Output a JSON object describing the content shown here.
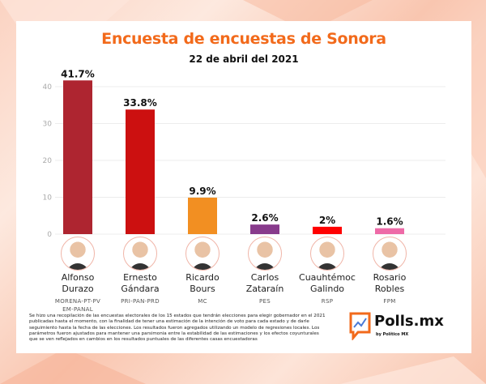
{
  "header": {
    "title": "Encuesta de encuestas de Sonora",
    "subtitle": "22 de abril del 2021"
  },
  "chart_data": {
    "type": "bar",
    "title": "Encuesta de encuestas de Sonora",
    "subtitle": "22 de abril del 2021",
    "xlabel": "",
    "ylabel": "",
    "ylim": [
      0,
      45
    ],
    "yticks": [
      0,
      10,
      20,
      30,
      40
    ],
    "grid": true,
    "categories": [
      "Alfonso Durazo",
      "Ernesto Gándara",
      "Ricardo Bours",
      "Carlos Zataraín",
      "Cuauhtémoc Galindo",
      "Rosario Robles"
    ],
    "values": [
      41.7,
      33.8,
      9.9,
      2.6,
      2.0,
      1.6
    ],
    "data_labels": [
      "41.7%",
      "33.8%",
      "9.9%",
      "2.6%",
      "2%",
      "1.6%"
    ],
    "colors": [
      "#ae2530",
      "#cc1010",
      "#f28f22",
      "#883b8c",
      "#ff0000",
      "#ee6aa7"
    ]
  },
  "candidates": [
    {
      "first": "Alfonso",
      "last": "Durazo",
      "party": "MORENA-PT-PVEM-PANAL"
    },
    {
      "first": "Ernesto",
      "last": "Gándara",
      "party": "PRI-PAN-PRD"
    },
    {
      "first": "Ricardo",
      "last": "Bours",
      "party": "MC"
    },
    {
      "first": "Carlos",
      "last": "Zataraín",
      "party": "PES"
    },
    {
      "first": "Cuauhtémoc",
      "last": "Galindo",
      "party": "RSP"
    },
    {
      "first": "Rosario",
      "last": "Robles",
      "party": "FPM"
    }
  ],
  "footer": {
    "note": "Se hizo una recopilación de las encuestas electorales de los 15 estados que tendrán elecciones para elegir gobernador en el 2021 publicadas hasta el momento, con la finalidad de tener una estimación de la intención de voto para cada estado y de darle seguimiento hasta la fecha de las elecciones. Los resultados fueron agregados utilizando un modelo de regresiones locales. Los parámetros fueron ajustados para mantener una parsimonia entre la estabilidad de las estimaciones y los efectos coyunturales que se ven reflejados en cambios en los resultados puntuales de las diferentes casas encuestadoras",
    "logo_text": "Polls.mx",
    "logo_sub": "by Político MX"
  }
}
